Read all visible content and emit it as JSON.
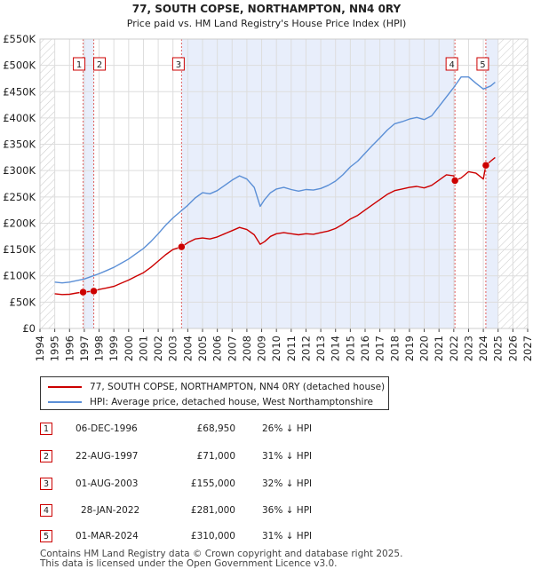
{
  "chart_data": {
    "type": "line",
    "title": "77, SOUTH COPSE, NORTHAMPTON, NN4 0RY",
    "subtitle": "Price paid vs. HM Land Registry's House Price Index (HPI)",
    "x_range": [
      1994,
      2027
    ],
    "ylim": [
      0,
      550000
    ],
    "y_ticks": [
      {
        "value": 0,
        "label": "£0"
      },
      {
        "value": 50000,
        "label": "£50K"
      },
      {
        "value": 100000,
        "label": "£100K"
      },
      {
        "value": 150000,
        "label": "£150K"
      },
      {
        "value": 200000,
        "label": "£200K"
      },
      {
        "value": 250000,
        "label": "£250K"
      },
      {
        "value": 300000,
        "label": "£300K"
      },
      {
        "value": 350000,
        "label": "£350K"
      },
      {
        "value": 400000,
        "label": "£400K"
      },
      {
        "value": 450000,
        "label": "£450K"
      },
      {
        "value": 500000,
        "label": "£500K"
      },
      {
        "value": 550000,
        "label": "£550K"
      }
    ],
    "x_ticks": [
      "1994",
      "1995",
      "1996",
      "1997",
      "1998",
      "1999",
      "2000",
      "2001",
      "2002",
      "2003",
      "2004",
      "2005",
      "2006",
      "2007",
      "2008",
      "2009",
      "2010",
      "2011",
      "2012",
      "2013",
      "2014",
      "2015",
      "2016",
      "2017",
      "2018",
      "2019",
      "2020",
      "2021",
      "2022",
      "2023",
      "2024",
      "2025",
      "2026",
      "2027"
    ],
    "shaded_periods": [
      [
        1996.92,
        1997.64
      ],
      [
        2003.58,
        2022.08
      ],
      [
        2024.17,
        2025.0
      ]
    ],
    "hatched_regions": [
      [
        1994.0,
        1995.0
      ],
      [
        2025.0,
        2027.0
      ]
    ],
    "series": [
      {
        "name": "77, SOUTH COPSE, NORTHAMPTON, NN4 0RY (detached house)",
        "color": "#cc0000",
        "points": [
          [
            1995.0,
            66000
          ],
          [
            1995.5,
            64500
          ],
          [
            1996.0,
            65000
          ],
          [
            1996.5,
            67500
          ],
          [
            1996.92,
            68950
          ],
          [
            1997.3,
            70000
          ],
          [
            1997.64,
            71000
          ],
          [
            1998.0,
            74000
          ],
          [
            1998.5,
            77000
          ],
          [
            1999.0,
            80000
          ],
          [
            1999.5,
            86000
          ],
          [
            2000.0,
            92000
          ],
          [
            2000.5,
            99000
          ],
          [
            2001.0,
            106000
          ],
          [
            2001.5,
            116000
          ],
          [
            2002.0,
            128000
          ],
          [
            2002.5,
            140000
          ],
          [
            2003.0,
            150000
          ],
          [
            2003.58,
            155000
          ],
          [
            2004.0,
            163000
          ],
          [
            2004.5,
            170000
          ],
          [
            2005.0,
            172000
          ],
          [
            2005.5,
            170000
          ],
          [
            2006.0,
            174000
          ],
          [
            2006.5,
            180000
          ],
          [
            2007.0,
            186000
          ],
          [
            2007.5,
            192000
          ],
          [
            2008.0,
            188000
          ],
          [
            2008.5,
            178000
          ],
          [
            2008.9,
            160000
          ],
          [
            2009.2,
            165000
          ],
          [
            2009.6,
            175000
          ],
          [
            2010.0,
            180000
          ],
          [
            2010.5,
            182000
          ],
          [
            2011.0,
            180000
          ],
          [
            2011.5,
            178000
          ],
          [
            2012.0,
            180000
          ],
          [
            2012.5,
            179000
          ],
          [
            2013.0,
            182000
          ],
          [
            2013.5,
            185000
          ],
          [
            2014.0,
            190000
          ],
          [
            2014.5,
            198000
          ],
          [
            2015.0,
            208000
          ],
          [
            2015.5,
            215000
          ],
          [
            2016.0,
            225000
          ],
          [
            2016.5,
            235000
          ],
          [
            2017.0,
            245000
          ],
          [
            2017.5,
            255000
          ],
          [
            2018.0,
            262000
          ],
          [
            2018.5,
            265000
          ],
          [
            2019.0,
            268000
          ],
          [
            2019.5,
            270000
          ],
          [
            2020.0,
            267000
          ],
          [
            2020.5,
            272000
          ],
          [
            2021.0,
            282000
          ],
          [
            2021.5,
            292000
          ],
          [
            2022.0,
            290000
          ],
          [
            2022.08,
            281000
          ],
          [
            2022.5,
            286000
          ],
          [
            2023.0,
            298000
          ],
          [
            2023.5,
            295000
          ],
          [
            2024.0,
            284000
          ],
          [
            2024.17,
            310000
          ],
          [
            2024.5,
            318000
          ],
          [
            2024.8,
            325000
          ]
        ]
      },
      {
        "name": "HPI: Average price, detached house, West Northamptonshire",
        "color": "#5b8fd6",
        "points": [
          [
            1995.0,
            88000
          ],
          [
            1995.5,
            86500
          ],
          [
            1996.0,
            88000
          ],
          [
            1996.5,
            91000
          ],
          [
            1997.0,
            94000
          ],
          [
            1997.5,
            99000
          ],
          [
            1998.0,
            104000
          ],
          [
            1998.5,
            110000
          ],
          [
            1999.0,
            116000
          ],
          [
            1999.5,
            124000
          ],
          [
            2000.0,
            132000
          ],
          [
            2000.5,
            142000
          ],
          [
            2001.0,
            152000
          ],
          [
            2001.5,
            165000
          ],
          [
            2002.0,
            180000
          ],
          [
            2002.5,
            196000
          ],
          [
            2003.0,
            210000
          ],
          [
            2003.5,
            222000
          ],
          [
            2004.0,
            234000
          ],
          [
            2004.5,
            248000
          ],
          [
            2005.0,
            258000
          ],
          [
            2005.5,
            256000
          ],
          [
            2006.0,
            262000
          ],
          [
            2006.5,
            272000
          ],
          [
            2007.0,
            282000
          ],
          [
            2007.5,
            290000
          ],
          [
            2008.0,
            284000
          ],
          [
            2008.5,
            268000
          ],
          [
            2008.9,
            232000
          ],
          [
            2009.2,
            245000
          ],
          [
            2009.6,
            258000
          ],
          [
            2010.0,
            265000
          ],
          [
            2010.5,
            268000
          ],
          [
            2011.0,
            264000
          ],
          [
            2011.5,
            261000
          ],
          [
            2012.0,
            264000
          ],
          [
            2012.5,
            263000
          ],
          [
            2013.0,
            266000
          ],
          [
            2013.5,
            272000
          ],
          [
            2014.0,
            280000
          ],
          [
            2014.5,
            292000
          ],
          [
            2015.0,
            307000
          ],
          [
            2015.5,
            318000
          ],
          [
            2016.0,
            333000
          ],
          [
            2016.5,
            348000
          ],
          [
            2017.0,
            362000
          ],
          [
            2017.5,
            377000
          ],
          [
            2018.0,
            389000
          ],
          [
            2018.5,
            393000
          ],
          [
            2019.0,
            398000
          ],
          [
            2019.5,
            401000
          ],
          [
            2020.0,
            397000
          ],
          [
            2020.5,
            404000
          ],
          [
            2021.0,
            422000
          ],
          [
            2021.5,
            440000
          ],
          [
            2022.0,
            458000
          ],
          [
            2022.5,
            478000
          ],
          [
            2023.0,
            478000
          ],
          [
            2023.5,
            466000
          ],
          [
            2024.0,
            455000
          ],
          [
            2024.5,
            461000
          ],
          [
            2024.8,
            468000
          ]
        ]
      }
    ],
    "transactions": [
      {
        "number": "1",
        "date": "06-DEC-1996",
        "price": "£68,950",
        "hpi": "26% ↓ HPI",
        "x": 1996.92,
        "y": 68950
      },
      {
        "number": "2",
        "date": "22-AUG-1997",
        "price": "£71,000",
        "hpi": "31% ↓ HPI",
        "x": 1997.64,
        "y": 71000
      },
      {
        "number": "3",
        "date": "01-AUG-2003",
        "price": "£155,000",
        "hpi": "32% ↓ HPI",
        "x": 2003.58,
        "y": 155000
      },
      {
        "number": "4",
        "date": "28-JAN-2022",
        "price": "£281,000",
        "hpi": "36% ↓ HPI",
        "x": 2022.08,
        "y": 281000
      },
      {
        "number": "5",
        "date": "01-MAR-2024",
        "price": "£310,000",
        "hpi": "31% ↓ HPI",
        "x": 2024.17,
        "y": 310000
      }
    ]
  },
  "footer": {
    "line1": "Contains HM Land Registry data © Crown copyright and database right 2025.",
    "line2": "This data is licensed under the Open Government Licence v3.0."
  }
}
